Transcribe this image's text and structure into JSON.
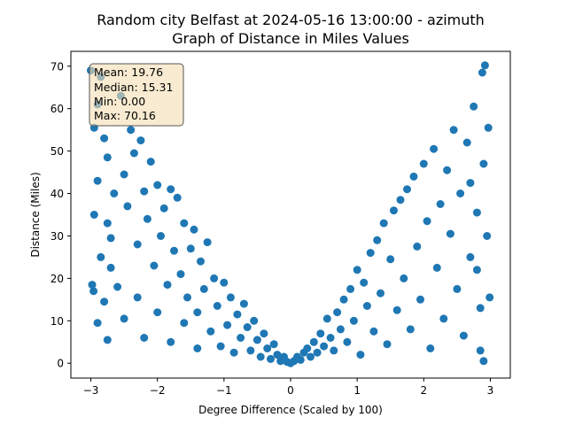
{
  "chart_data": {
    "type": "scatter",
    "title_line1": "Random city Belfast at 2024-05-16 13:00:00  - azimuth",
    "title_line2": "Graph of Distance in Miles Values",
    "xlabel": "Degree Difference (Scaled by 100)",
    "ylabel": "Distance (Miles)",
    "xlim": [
      -3.3,
      3.3
    ],
    "ylim": [
      -3.5,
      73.5
    ],
    "x_ticks": [
      -3,
      -2,
      -1,
      0,
      1,
      2,
      3
    ],
    "y_ticks": [
      0,
      10,
      20,
      30,
      40,
      50,
      60,
      70
    ],
    "grid": false,
    "marker_color": "#1f77b4",
    "stats_box": {
      "mean": "Mean: 19.76",
      "median": "Median: 15.31",
      "min": "Min: 0.00",
      "max": "Max: 70.16",
      "box_color": "#f5deb3",
      "placement": "top-left"
    },
    "points": [
      [
        -3.0,
        69.0
      ],
      [
        -2.95,
        55.5
      ],
      [
        -2.9,
        61.0
      ],
      [
        -2.85,
        67.5
      ],
      [
        -2.9,
        43.0
      ],
      [
        -2.8,
        53.0
      ],
      [
        -2.75,
        48.5
      ],
      [
        -2.95,
        35.0
      ],
      [
        -2.98,
        18.5
      ],
      [
        -2.96,
        17.0
      ],
      [
        -2.9,
        9.5
      ],
      [
        -2.85,
        25.0
      ],
      [
        -2.8,
        14.5
      ],
      [
        -2.75,
        33.0
      ],
      [
        -2.7,
        22.5
      ],
      [
        -2.75,
        5.5
      ],
      [
        -2.7,
        29.5
      ],
      [
        -2.65,
        40.0
      ],
      [
        -2.6,
        18.0
      ],
      [
        -2.55,
        63.0
      ],
      [
        -2.5,
        44.5
      ],
      [
        -2.5,
        10.5
      ],
      [
        -2.45,
        37.0
      ],
      [
        -2.4,
        55.0
      ],
      [
        -2.35,
        49.5
      ],
      [
        -2.3,
        28.0
      ],
      [
        -2.3,
        15.5
      ],
      [
        -2.25,
        52.5
      ],
      [
        -2.2,
        40.5
      ],
      [
        -2.2,
        6.0
      ],
      [
        -2.15,
        34.0
      ],
      [
        -2.1,
        47.5
      ],
      [
        -2.05,
        23.0
      ],
      [
        -2.0,
        42.0
      ],
      [
        -2.0,
        12.0
      ],
      [
        -1.95,
        30.0
      ],
      [
        -1.9,
        36.5
      ],
      [
        -1.85,
        18.5
      ],
      [
        -1.8,
        41.0
      ],
      [
        -1.8,
        5.0
      ],
      [
        -1.75,
        26.5
      ],
      [
        -1.7,
        39.0
      ],
      [
        -1.65,
        21.0
      ],
      [
        -1.6,
        33.0
      ],
      [
        -1.6,
        9.5
      ],
      [
        -1.55,
        15.5
      ],
      [
        -1.5,
        27.0
      ],
      [
        -1.45,
        31.5
      ],
      [
        -1.4,
        12.0
      ],
      [
        -1.4,
        3.5
      ],
      [
        -1.35,
        24.0
      ],
      [
        -1.3,
        17.5
      ],
      [
        -1.25,
        28.5
      ],
      [
        -1.2,
        7.5
      ],
      [
        -1.15,
        20.0
      ],
      [
        -1.1,
        13.5
      ],
      [
        -1.05,
        4.0
      ],
      [
        -1.0,
        19.0
      ],
      [
        -0.95,
        9.0
      ],
      [
        -0.9,
        15.5
      ],
      [
        -0.85,
        2.5
      ],
      [
        -0.8,
        11.5
      ],
      [
        -0.75,
        6.0
      ],
      [
        -0.7,
        14.0
      ],
      [
        -0.65,
        8.5
      ],
      [
        -0.6,
        3.0
      ],
      [
        -0.55,
        10.0
      ],
      [
        -0.5,
        5.5
      ],
      [
        -0.45,
        1.5
      ],
      [
        -0.4,
        7.0
      ],
      [
        -0.35,
        3.5
      ],
      [
        -0.3,
        1.0
      ],
      [
        -0.25,
        4.5
      ],
      [
        -0.2,
        2.0
      ],
      [
        -0.15,
        0.5
      ],
      [
        -0.1,
        1.5
      ],
      [
        -0.05,
        0.3
      ],
      [
        0.0,
        0.0
      ],
      [
        0.05,
        0.5
      ],
      [
        0.1,
        1.5
      ],
      [
        0.15,
        0.8
      ],
      [
        0.2,
        2.5
      ],
      [
        0.25,
        3.5
      ],
      [
        0.3,
        1.5
      ],
      [
        0.35,
        5.0
      ],
      [
        0.4,
        2.5
      ],
      [
        0.45,
        7.0
      ],
      [
        0.5,
        4.0
      ],
      [
        0.55,
        10.5
      ],
      [
        0.6,
        6.0
      ],
      [
        0.65,
        3.0
      ],
      [
        0.7,
        12.0
      ],
      [
        0.75,
        8.0
      ],
      [
        0.8,
        15.0
      ],
      [
        0.85,
        5.0
      ],
      [
        0.9,
        17.5
      ],
      [
        0.95,
        10.0
      ],
      [
        1.0,
        22.0
      ],
      [
        1.05,
        2.0
      ],
      [
        1.1,
        19.0
      ],
      [
        1.15,
        13.5
      ],
      [
        1.2,
        26.0
      ],
      [
        1.25,
        7.5
      ],
      [
        1.3,
        29.0
      ],
      [
        1.35,
        16.5
      ],
      [
        1.4,
        33.0
      ],
      [
        1.45,
        4.5
      ],
      [
        1.5,
        24.5
      ],
      [
        1.55,
        36.0
      ],
      [
        1.6,
        12.5
      ],
      [
        1.65,
        38.5
      ],
      [
        1.7,
        20.0
      ],
      [
        1.75,
        41.0
      ],
      [
        1.8,
        8.0
      ],
      [
        1.85,
        44.0
      ],
      [
        1.9,
        27.5
      ],
      [
        1.95,
        15.0
      ],
      [
        2.0,
        47.0
      ],
      [
        2.05,
        33.5
      ],
      [
        2.1,
        3.5
      ],
      [
        2.15,
        50.5
      ],
      [
        2.2,
        22.5
      ],
      [
        2.25,
        37.5
      ],
      [
        2.3,
        10.5
      ],
      [
        2.35,
        45.5
      ],
      [
        2.4,
        30.5
      ],
      [
        2.45,
        55.0
      ],
      [
        2.5,
        17.5
      ],
      [
        2.55,
        40.0
      ],
      [
        2.6,
        6.5
      ],
      [
        2.65,
        52.0
      ],
      [
        2.7,
        25.0
      ],
      [
        2.75,
        60.5
      ],
      [
        2.8,
        35.5
      ],
      [
        2.85,
        13.0
      ],
      [
        2.88,
        68.5
      ],
      [
        2.9,
        47.0
      ],
      [
        2.92,
        70.2
      ],
      [
        2.95,
        30.0
      ],
      [
        2.97,
        55.5
      ],
      [
        2.99,
        15.5
      ],
      [
        2.9,
        0.5
      ],
      [
        2.85,
        3.0
      ],
      [
        2.8,
        22.0
      ],
      [
        2.7,
        42.5
      ]
    ]
  }
}
